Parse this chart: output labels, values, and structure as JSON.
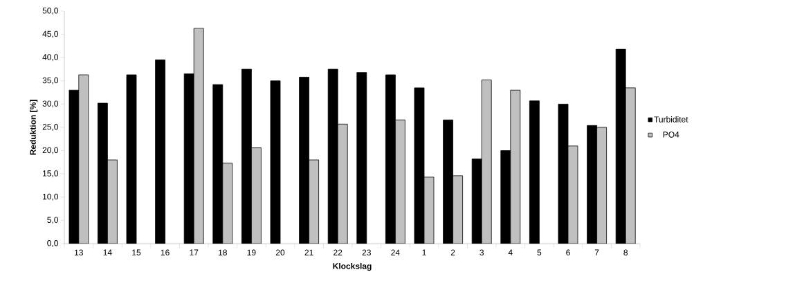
{
  "chart_data": {
    "type": "bar",
    "xlabel": "Klockslag",
    "ylabel": "Reduktion [%]",
    "categories": [
      "13",
      "14",
      "15",
      "16",
      "17",
      "18",
      "19",
      "20",
      "21",
      "22",
      "23",
      "24",
      "1",
      "2",
      "3",
      "4",
      "5",
      "6",
      "7",
      "8"
    ],
    "series": [
      {
        "name": "Turbiditet",
        "color": "#000000",
        "values": [
          33.0,
          30.2,
          36.3,
          39.5,
          36.5,
          34.2,
          37.5,
          35.0,
          35.8,
          37.5,
          36.8,
          36.3,
          33.5,
          26.6,
          18.2,
          20.0,
          30.7,
          30.0,
          25.4,
          41.8
        ]
      },
      {
        "name": "PO4",
        "color": "#c0c0c0",
        "values": [
          36.3,
          18.0,
          null,
          null,
          46.3,
          17.3,
          20.6,
          null,
          18.0,
          25.7,
          null,
          26.6,
          14.3,
          14.6,
          35.2,
          33.0,
          null,
          21.0,
          25.0,
          33.5
        ]
      }
    ],
    "ylim": [
      0,
      50
    ],
    "yticks": [
      {
        "value": 0,
        "label": "0,0"
      },
      {
        "value": 5,
        "label": "5,0"
      },
      {
        "value": 10,
        "label": "10,0"
      },
      {
        "value": 15,
        "label": "15,0"
      },
      {
        "value": 20,
        "label": "20,0"
      },
      {
        "value": 25,
        "label": "25,0"
      },
      {
        "value": 30,
        "label": "30,0"
      },
      {
        "value": 35,
        "label": "35,0"
      },
      {
        "value": 40,
        "label": "40,0"
      },
      {
        "value": 45,
        "label": "45,0"
      },
      {
        "value": 50,
        "label": "50,0"
      }
    ],
    "grid": false,
    "legend": "right"
  }
}
